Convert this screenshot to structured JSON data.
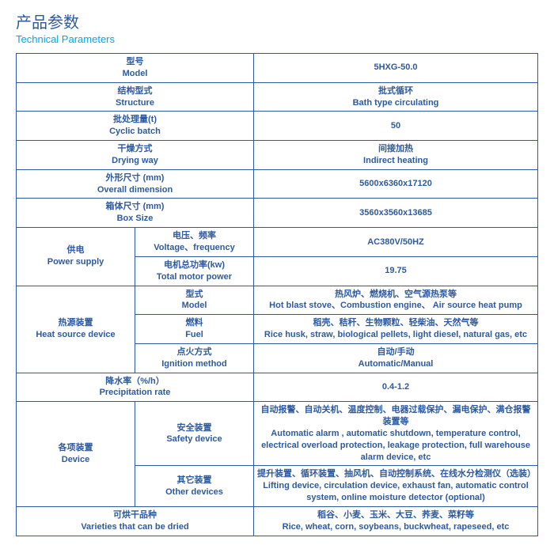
{
  "heading": {
    "cn": "产品参数",
    "en": "Technical Parameters"
  },
  "rows": {
    "model": {
      "label_cn": "型号",
      "label_en": "Model",
      "value": "5HXG-50.0"
    },
    "structure": {
      "label_cn": "结构型式",
      "label_en": "Structure",
      "value_cn": "批式循环",
      "value_en": "Bath type circulating"
    },
    "cyclic_batch": {
      "label_cn": "批处理量(t)",
      "label_en": "Cyclic batch",
      "value": "50"
    },
    "drying_way": {
      "label_cn": "干燥方式",
      "label_en": "Drying way",
      "value_cn": "间接加热",
      "value_en": "Indirect heating"
    },
    "overall_dim": {
      "label_cn": "外形尺寸 (mm)",
      "label_en": "Overall dimension",
      "value": "5600x6360x17120"
    },
    "box_size": {
      "label_cn": "箱体尺寸 (mm)",
      "label_en": "Box Size",
      "value": "3560x3560x13685"
    },
    "power_supply": {
      "label_cn": "供电",
      "label_en": "Power supply",
      "voltage": {
        "label_cn": "电压、频率",
        "label_en": "Voltage、frequency",
        "value": "AC380V/50HZ"
      },
      "motor_power": {
        "label_cn": "电机总功率(kw)",
        "label_en": "Total motor power",
        "value": "19.75"
      }
    },
    "heat_source": {
      "label_cn": "热源装置",
      "label_en": "Heat source device",
      "type": {
        "label_cn": "型式",
        "label_en": "Model",
        "value_cn": "热风炉、燃烧机、空气源热泵等",
        "value_en": "Hot blast stove、Combustion engine、 Air source heat pump"
      },
      "fuel": {
        "label_cn": "燃料",
        "label_en": "Fuel",
        "value_cn": "稻壳、秸秆、生物颗粒、轻柴油、天然气等",
        "value_en": "Rice husk, straw, biological pellets, light diesel, natural gas, etc"
      },
      "ignition": {
        "label_cn": "点火方式",
        "label_en": "Ignition method",
        "value_cn": "自动/手动",
        "value_en": "Automatic/Manual"
      }
    },
    "precip": {
      "label_cn": "降水率（%/h）",
      "label_en": "Precipitation rate",
      "value": "0.4-1.2"
    },
    "devices": {
      "label_cn": "各项装置",
      "label_en": "Device",
      "safety": {
        "label_cn": "安全装置",
        "label_en": "Safety device",
        "value_cn": "自动报警、自动关机、温度控制、电器过载保护、漏电保护、满仓报警装置等",
        "value_en": "Automatic alarm , automatic shutdown, temperature control, electrical overload protection, leakage protection, full warehouse alarm device, etc"
      },
      "other": {
        "label_cn": "其它装置",
        "label_en": "Other devices",
        "value_cn": "提升装置、循环装置、抽风机、自动控制系统、在线水分检测仪（选装）",
        "value_en": "Lifting device, circulation device, exhaust fan, automatic control system, online moisture detector (optional)"
      }
    },
    "varieties": {
      "label_cn": "可烘干品种",
      "label_en": "Varieties that can be dried",
      "value_cn": "稻谷、小麦、玉米、大豆、荞麦、菜籽等",
      "value_en": "Rice, wheat, corn, soybeans, buckwheat, rapeseed, etc"
    }
  }
}
